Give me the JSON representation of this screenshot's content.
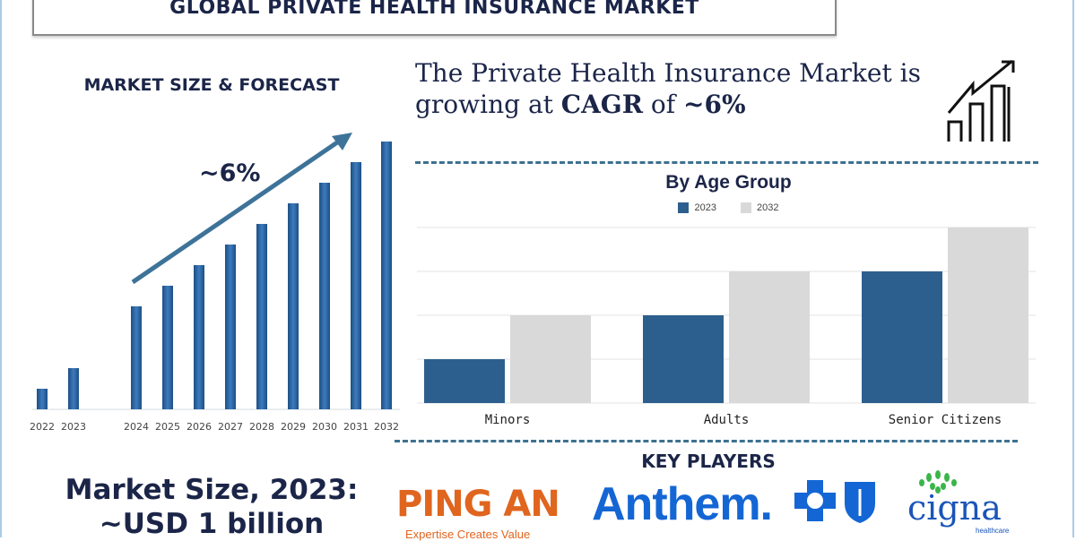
{
  "header": {
    "title": "GLOBAL PRIVATE HEALTH INSURANCE MARKET"
  },
  "market_forecast": {
    "heading": "MARKET SIZE & FORECAST",
    "growth_label": "~6%"
  },
  "headline": {
    "line1": "The Private Health Insurance Market is",
    "line2_pre": "growing at ",
    "line2_bold": "CAGR",
    "line2_mid": " of ",
    "line2_value": "~6%"
  },
  "market_size": {
    "line1": "Market Size, 2023:",
    "line2": "~USD 1 billion"
  },
  "key_players": {
    "heading": "KEY PLAYERS",
    "logos": [
      {
        "name": "PING AN",
        "tagline": "Expertise Creates Value",
        "color": "#e0651e"
      },
      {
        "name": "Anthem.",
        "color": "#1466d4"
      },
      {
        "name": "cigna",
        "tagline": "healthcare",
        "color": "#1a55b8"
      }
    ]
  },
  "chart_data": [
    {
      "type": "bar",
      "title": "MARKET SIZE & FORECAST",
      "categories": [
        "2022",
        "2023",
        "2024",
        "2025",
        "2026",
        "2027",
        "2028",
        "2029",
        "2030",
        "2031",
        "2032"
      ],
      "values": [
        1.0,
        2.0,
        5.0,
        6.0,
        7.0,
        8.0,
        9.0,
        10.0,
        11.0,
        12.0,
        13.0
      ],
      "annotation": "~6%",
      "color": "#2e67a3",
      "grid": false,
      "axes_visible": false
    },
    {
      "type": "bar",
      "title": "By Age Group",
      "categories": [
        "Minors",
        "Adults",
        "Senior Citizens"
      ],
      "series": [
        {
          "name": "2023",
          "values": [
            1,
            2,
            3
          ],
          "color": "#2d5f8e"
        },
        {
          "name": "2032",
          "values": [
            2,
            3,
            4
          ],
          "color": "#d9d9d9"
        }
      ],
      "ylim": [
        0,
        4
      ],
      "grid": true,
      "legend": "top"
    }
  ]
}
